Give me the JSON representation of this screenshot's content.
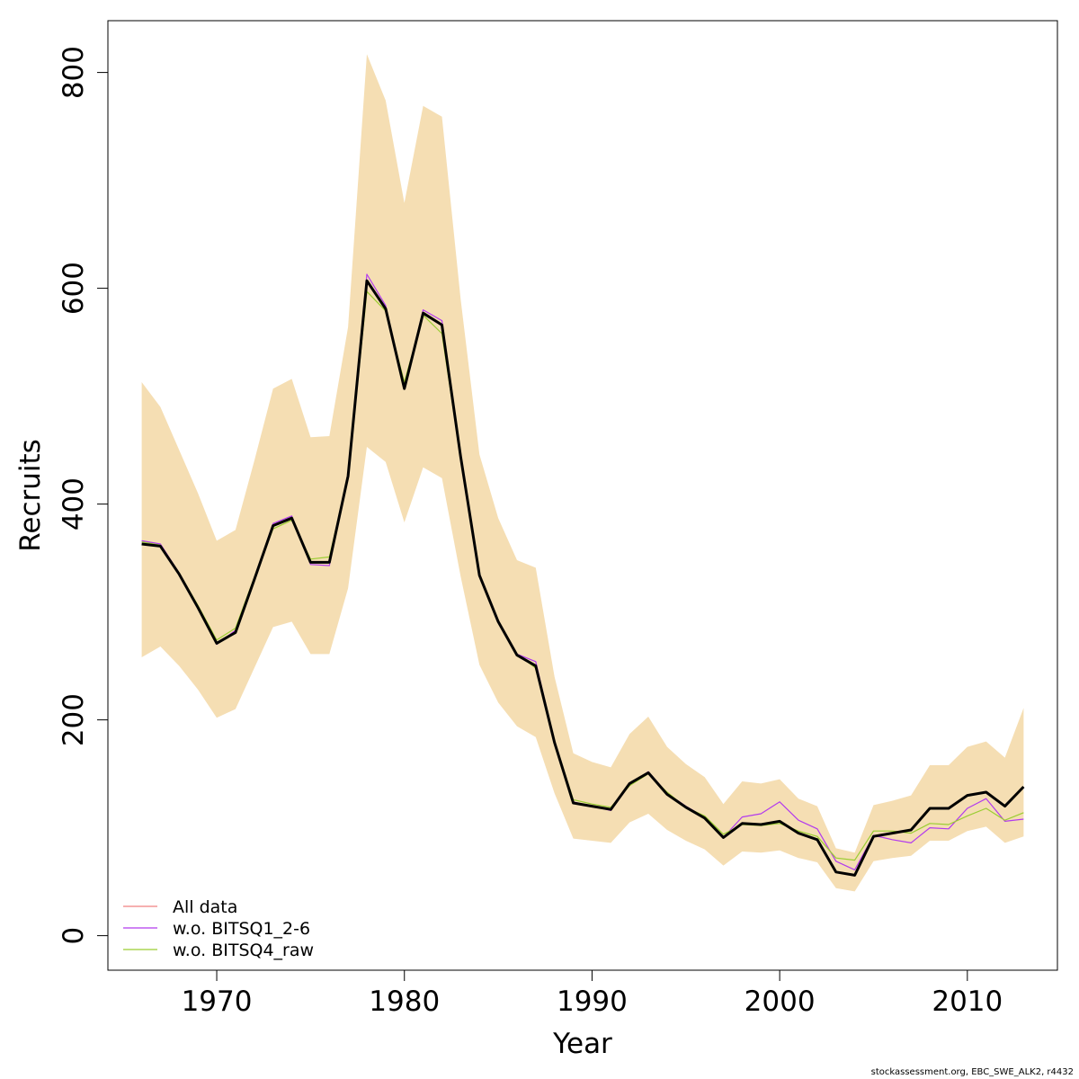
{
  "chart_data": {
    "type": "line",
    "xlabel": "Year",
    "ylabel": "Recruits",
    "xlim": [
      1964.2,
      2014.8
    ],
    "ylim": [
      -32,
      848
    ],
    "x_ticks": [
      1970,
      1980,
      1990,
      2000,
      2010
    ],
    "y_ticks": [
      0,
      200,
      400,
      600,
      800
    ],
    "x": [
      1966,
      1967,
      1968,
      1969,
      1970,
      1971,
      1972,
      1973,
      1974,
      1975,
      1976,
      1977,
      1978,
      1979,
      1980,
      1981,
      1982,
      1983,
      1984,
      1985,
      1986,
      1987,
      1988,
      1989,
      1990,
      1991,
      1992,
      1993,
      1994,
      1995,
      1996,
      1997,
      1998,
      1999,
      2000,
      2001,
      2002,
      2003,
      2004,
      2005,
      2006,
      2007,
      2008,
      2009,
      2010,
      2011,
      2012,
      2013
    ],
    "band": {
      "color": "#f5deb3",
      "lower": [
        258,
        268,
        250,
        228,
        202,
        210,
        248,
        286,
        291,
        261,
        261,
        322,
        453,
        439,
        383,
        434,
        424,
        333,
        251,
        216,
        194,
        184,
        132,
        90,
        88,
        86,
        105,
        113,
        98,
        88,
        80,
        65,
        78,
        77,
        79,
        72,
        68,
        44,
        41,
        69,
        72,
        74,
        88,
        88,
        97,
        101,
        86,
        92
      ],
      "upper": [
        513,
        490,
        450,
        410,
        366,
        376,
        440,
        507,
        516,
        462,
        463,
        564,
        817,
        774,
        679,
        769,
        759,
        590,
        446,
        387,
        348,
        341,
        240,
        169,
        161,
        156,
        187,
        203,
        175,
        159,
        147,
        122,
        143,
        141,
        145,
        127,
        120,
        81,
        77,
        121,
        125,
        130,
        158,
        158,
        175,
        180,
        165,
        211
      ]
    },
    "series": [
      {
        "name": "All data",
        "color": "#000000",
        "width": 3,
        "values": [
          363,
          361,
          335,
          304,
          271,
          281,
          330,
          380,
          387,
          346,
          346,
          426,
          607,
          581,
          507,
          577,
          566,
          444,
          334,
          291,
          260,
          250,
          179,
          123,
          120,
          117,
          141,
          151,
          131,
          119,
          109,
          91,
          104,
          103,
          106,
          95,
          89,
          59,
          56,
          92,
          95,
          98,
          118,
          118,
          130,
          133,
          120,
          138
        ]
      },
      {
        "name": "w.o. BITSQ1_2-6",
        "color": "#b23aee",
        "width": 1.2,
        "values": [
          366,
          363,
          336,
          305,
          270,
          283,
          331,
          382,
          389,
          344,
          343,
          426,
          613,
          584,
          507,
          580,
          570,
          446,
          335,
          291,
          261,
          254,
          180,
          124,
          120,
          116,
          140,
          152,
          132,
          120,
          110,
          91,
          110,
          113,
          124,
          107,
          99,
          69,
          61,
          93,
          89,
          86,
          100,
          99,
          118,
          127,
          106,
          108
        ]
      },
      {
        "name": "w.o. BITSQ4_raw",
        "color": "#9acd32",
        "width": 1.2,
        "values": [
          365,
          362,
          336,
          306,
          274,
          285,
          332,
          377,
          385,
          349,
          351,
          425,
          597,
          579,
          513,
          575,
          558,
          442,
          335,
          292,
          261,
          248,
          180,
          126,
          122,
          119,
          139,
          150,
          133,
          119,
          111,
          94,
          103,
          102,
          104,
          97,
          92,
          72,
          70,
          97,
          97,
          95,
          104,
          103,
          111,
          118,
          107,
          114
        ]
      }
    ],
    "legend": [
      {
        "label": "All data",
        "color": "#f08080"
      },
      {
        "label": "w.o. BITSQ1_2-6",
        "color": "#b23aee"
      },
      {
        "label": "w.o. BITSQ4_raw",
        "color": "#9acd32"
      }
    ],
    "legend_position": "bottom-left"
  },
  "footer": {
    "credit": "stockassessment.org, EBC_SWE_ALK2, r4432"
  }
}
